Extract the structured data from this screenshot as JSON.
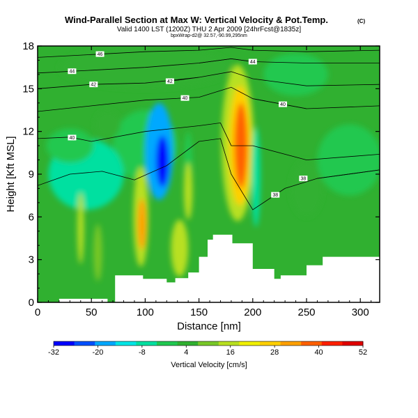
{
  "header": {
    "title": "Wind-Parallel Section at Max W: Vertical Velocity & Pot.Temp.",
    "title_mark": "(C)",
    "valid_line": "Valid 1400 LST (1200Z) THU 2 Apr 2009 [24hrFcst@1835z]",
    "source_line": "bpxWrap-d2@ 32.57,-90.99,295nm"
  },
  "chart_data": {
    "type": "heatmap",
    "xlabel": "Distance [nm]",
    "ylabel": "Height [Kft MSL]",
    "xlim": [
      0,
      318
    ],
    "ylim": [
      0,
      18
    ],
    "x_ticks": [
      0,
      50,
      100,
      150,
      200,
      250,
      300
    ],
    "y_ticks": [
      0,
      3,
      6,
      9,
      12,
      15,
      18
    ],
    "colorbar": {
      "label": "Vertical Velocity [cm/s]",
      "min": -32,
      "max": 52,
      "tick_values": [
        -32,
        -20,
        -8,
        4,
        16,
        28,
        40,
        52
      ],
      "tick_labels": [
        "-32",
        "-20",
        "-8",
        "4",
        "16",
        "28",
        "40",
        "52"
      ],
      "colors": [
        "#0000ff",
        "#0050ff",
        "#00a8ff",
        "#00e6e6",
        "#00e0a0",
        "#20c850",
        "#30b030",
        "#78c828",
        "#b8e020",
        "#f0f000",
        "#ffd000",
        "#ffa000",
        "#ff6000",
        "#ff2000",
        "#e00000"
      ]
    },
    "background_color": "#30b030",
    "terrain_profile": {
      "x": [
        0,
        20,
        20,
        65,
        65,
        72,
        72,
        98,
        98,
        120,
        120,
        128,
        128,
        140,
        140,
        150,
        150,
        158,
        158,
        163,
        163,
        181,
        181,
        200,
        200,
        220,
        220,
        226,
        226,
        250,
        250,
        265,
        265,
        318
      ],
      "y": [
        0,
        0,
        0.25,
        0.25,
        0,
        0,
        1.9,
        1.9,
        1.65,
        1.65,
        1.4,
        1.4,
        1.7,
        1.7,
        2.1,
        2.1,
        3.2,
        3.2,
        4.4,
        4.4,
        4.75,
        4.75,
        4.15,
        4.15,
        2.35,
        2.35,
        1.65,
        1.65,
        1.9,
        1.9,
        2.6,
        2.6,
        3.2,
        3.2
      ]
    },
    "velocity_features": [
      {
        "x": 100,
        "y": 11.0,
        "rx": 30,
        "ry": 2.5,
        "value": -4
      },
      {
        "x": 113,
        "y": 10.6,
        "rx": 13,
        "ry": 3.4,
        "value": -20
      },
      {
        "x": 116,
        "y": 9.9,
        "rx": 6,
        "ry": 1.8,
        "value": -32
      },
      {
        "x": 45,
        "y": 9.0,
        "rx": 35,
        "ry": 2.5,
        "value": -8
      },
      {
        "x": 30,
        "y": 11.0,
        "rx": 22,
        "ry": 1.2,
        "value": -2
      },
      {
        "x": 140,
        "y": 9.5,
        "rx": 4,
        "ry": 2.5,
        "value": -2
      },
      {
        "x": 186,
        "y": 11.2,
        "rx": 15,
        "ry": 5.5,
        "value": 16
      },
      {
        "x": 188,
        "y": 11.0,
        "rx": 10,
        "ry": 4.2,
        "value": 28
      },
      {
        "x": 189,
        "y": 11.0,
        "rx": 6,
        "ry": 3.0,
        "value": 40
      },
      {
        "x": 203,
        "y": 8.8,
        "rx": 4,
        "ry": 3.5,
        "value": -8
      },
      {
        "x": 96,
        "y": 6.0,
        "rx": 7,
        "ry": 3.5,
        "value": 18
      },
      {
        "x": 97,
        "y": 5.5,
        "rx": 4,
        "ry": 1.8,
        "value": 30
      },
      {
        "x": 40,
        "y": 5.2,
        "rx": 3,
        "ry": 2.5,
        "value": 18
      },
      {
        "x": 56,
        "y": 3.5,
        "rx": 4,
        "ry": 2,
        "value": 12
      },
      {
        "x": 132,
        "y": 3.8,
        "rx": 8,
        "ry": 2.0,
        "value": 16
      },
      {
        "x": 140,
        "y": 7.8,
        "rx": 4,
        "ry": 2.0,
        "value": 14
      },
      {
        "x": 65,
        "y": 12.5,
        "rx": 12,
        "ry": 1.0,
        "value": 4
      },
      {
        "x": 250,
        "y": 8.0,
        "rx": 15,
        "ry": 2.0,
        "value": 6
      },
      {
        "x": 290,
        "y": 10.0,
        "rx": 30,
        "ry": 2.5,
        "value": 0
      },
      {
        "x": 240,
        "y": 16.0,
        "rx": 30,
        "ry": 1.5,
        "value": 0
      },
      {
        "x": 100,
        "y": 16.5,
        "rx": 80,
        "ry": 1.5,
        "value": 2
      }
    ],
    "isentropes": [
      {
        "label": "46",
        "points": [
          [
            0,
            17.2
          ],
          [
            50,
            17.4
          ],
          [
            100,
            17.6
          ],
          [
            150,
            17.7
          ],
          [
            180,
            17.9
          ],
          [
            200,
            17.7
          ],
          [
            250,
            17.6
          ],
          [
            318,
            17.7
          ]
        ],
        "label_x": 58
      },
      {
        "label": "44",
        "points": [
          [
            0,
            16.1
          ],
          [
            50,
            16.3
          ],
          [
            100,
            16.5
          ],
          [
            150,
            16.8
          ],
          [
            180,
            17.1
          ],
          [
            200,
            16.9
          ],
          [
            250,
            16.8
          ],
          [
            318,
            16.8
          ]
        ],
        "label_x": 32
      },
      {
        "label": "44",
        "points": [
          [
            150,
            16.8
          ],
          [
            180,
            17.1
          ],
          [
            200,
            16.9
          ]
        ],
        "label_x": 200
      },
      {
        "label": "42",
        "points": [
          [
            0,
            15.0
          ],
          [
            50,
            15.3
          ],
          [
            100,
            15.4
          ],
          [
            150,
            15.8
          ],
          [
            180,
            16.2
          ],
          [
            200,
            15.7
          ],
          [
            250,
            15.2
          ],
          [
            318,
            15.3
          ]
        ],
        "label_x": 52
      },
      {
        "label": "42",
        "points": [
          [
            120,
            15.5
          ],
          [
            150,
            15.8
          ]
        ],
        "label_x": 123
      },
      {
        "label": "40",
        "points": [
          [
            0,
            13.4
          ],
          [
            50,
            13.8
          ],
          [
            100,
            14.2
          ],
          [
            150,
            14.4
          ],
          [
            180,
            15.1
          ],
          [
            200,
            14.3
          ],
          [
            250,
            13.6
          ],
          [
            318,
            13.8
          ]
        ],
        "label_x": 137
      },
      {
        "label": "40",
        "points": [
          [
            200,
            14.3
          ],
          [
            250,
            13.6
          ]
        ],
        "label_x": 228
      },
      {
        "label": "40",
        "points": [
          [
            0,
            11.5
          ],
          [
            30,
            11.6
          ],
          [
            50,
            11.3
          ],
          [
            100,
            12.0
          ],
          [
            150,
            12.4
          ],
          [
            170,
            12.6
          ],
          [
            180,
            11.0
          ],
          [
            200,
            11.0
          ],
          [
            250,
            10.0
          ],
          [
            318,
            10.4
          ]
        ],
        "label_x": 32
      },
      {
        "label": "38",
        "points": [
          [
            0,
            8.2
          ],
          [
            30,
            9.0
          ],
          [
            60,
            9.2
          ],
          [
            90,
            8.6
          ],
          [
            120,
            9.6
          ],
          [
            150,
            11.3
          ],
          [
            170,
            11.5
          ],
          [
            180,
            9.0
          ],
          [
            200,
            6.5
          ],
          [
            230,
            8.0
          ],
          [
            260,
            8.7
          ],
          [
            318,
            9.3
          ]
        ],
        "label_x": 221
      },
      {
        "label": "38",
        "points": [
          [
            260,
            8.7
          ],
          [
            318,
            9.3
          ]
        ],
        "label_x": 247
      }
    ]
  }
}
